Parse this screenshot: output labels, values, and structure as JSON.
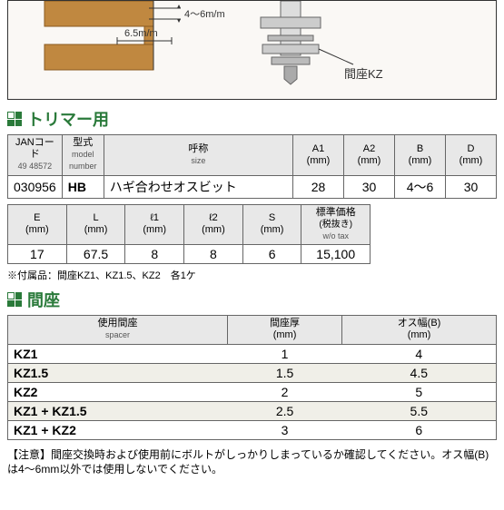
{
  "diagram": {
    "dim1": "4～6m/m",
    "dim2": "6.5m/m",
    "label": "間座KZ",
    "colors": {
      "wood": "#c08840",
      "metal": "#888",
      "outline": "#333"
    }
  },
  "section1": {
    "title": "トリマー用"
  },
  "table1": {
    "headers": {
      "jan": "JANコード",
      "jan_sub": "49 48572",
      "model": "型式",
      "model_sub": "model number",
      "name": "呼称",
      "name_sub": "size",
      "a1": "A1",
      "a2": "A2",
      "b": "B",
      "d": "D",
      "unit": "(mm)"
    },
    "row": {
      "jan": "030956",
      "model": "HB",
      "name": "ハギ合わせオスビット",
      "a1": "28",
      "a2": "30",
      "b": "4～6",
      "d": "30"
    }
  },
  "table2": {
    "headers": {
      "e": "E",
      "l": "L",
      "l1": "ℓ1",
      "l2": "ℓ2",
      "s": "S",
      "price": "標準価格",
      "price_sub": "(税抜き)",
      "price_sub2": "w/o tax",
      "unit": "(mm)"
    },
    "row": {
      "e": "17",
      "l": "67.5",
      "l1": "8",
      "l2": "8",
      "s": "6",
      "price": "15,100"
    }
  },
  "note1": "※付属品：間座KZ1、KZ1.5、KZ2　各1ケ",
  "section2": {
    "title": "間座"
  },
  "spacer_table": {
    "headers": {
      "spacer": "使用間座",
      "spacer_sub": "spacer",
      "thick": "間座厚",
      "width": "オス幅(B)",
      "unit": "(mm)"
    },
    "rows": [
      {
        "spacer": "KZ1",
        "thick": "1",
        "width": "4"
      },
      {
        "spacer": "KZ1.5",
        "thick": "1.5",
        "width": "4.5"
      },
      {
        "spacer": "KZ2",
        "thick": "2",
        "width": "5"
      },
      {
        "spacer": "KZ1 + KZ1.5",
        "thick": "2.5",
        "width": "5.5"
      },
      {
        "spacer": "KZ1 + KZ2",
        "thick": "3",
        "width": "6"
      }
    ]
  },
  "caution": "【注意】間座交換時および使用前にボルトがしっかりしまっているか確認してください。オス幅(B)は4～6mm以外では使用しないでください。"
}
